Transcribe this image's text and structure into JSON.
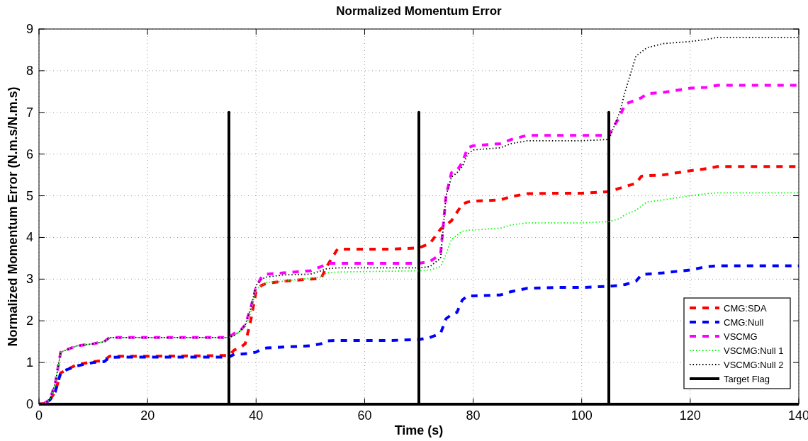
{
  "chart_data": {
    "type": "line",
    "title": "Normalized Momentum Error",
    "xlabel": "Time (s)",
    "ylabel": "Normalized Momentum Error (N.m.s/N.m.s)",
    "x": [
      0,
      1,
      2,
      3,
      4,
      5,
      7,
      10,
      12,
      13,
      15,
      20,
      30,
      35,
      36,
      37,
      38,
      39,
      40,
      41,
      42,
      45,
      50,
      52,
      53,
      55,
      60,
      65,
      70,
      72,
      74,
      75,
      76,
      77,
      78,
      79,
      80,
      85,
      87,
      90,
      95,
      100,
      105,
      107,
      108,
      110,
      111,
      112,
      115,
      120,
      123,
      125,
      130,
      140
    ],
    "series": [
      {
        "name": "CMG:SDA",
        "color": "#ff0000",
        "line_style": "dashed",
        "values": [
          0,
          0.02,
          0.1,
          0.3,
          0.75,
          0.82,
          0.95,
          1.02,
          1.05,
          1.15,
          1.15,
          1.15,
          1.16,
          1.17,
          1.3,
          1.35,
          1.45,
          2.0,
          2.7,
          2.85,
          2.9,
          2.95,
          3.0,
          3.02,
          3.3,
          3.72,
          3.72,
          3.72,
          3.75,
          3.85,
          4.2,
          4.3,
          4.4,
          4.6,
          4.8,
          4.85,
          4.87,
          4.9,
          4.98,
          5.05,
          5.06,
          5.06,
          5.1,
          5.18,
          5.22,
          5.3,
          5.47,
          5.48,
          5.5,
          5.6,
          5.65,
          5.7,
          5.7,
          5.7
        ]
      },
      {
        "name": "CMG:Null",
        "color": "#0000ff",
        "line_style": "dashed",
        "values": [
          0,
          0.02,
          0.1,
          0.3,
          0.75,
          0.82,
          0.92,
          1.0,
          1.02,
          1.12,
          1.13,
          1.13,
          1.13,
          1.13,
          1.2,
          1.2,
          1.21,
          1.22,
          1.25,
          1.32,
          1.35,
          1.37,
          1.4,
          1.45,
          1.52,
          1.53,
          1.53,
          1.53,
          1.55,
          1.6,
          1.7,
          2.05,
          2.15,
          2.2,
          2.5,
          2.6,
          2.6,
          2.62,
          2.7,
          2.78,
          2.8,
          2.8,
          2.83,
          2.85,
          2.87,
          2.95,
          3.1,
          3.12,
          3.15,
          3.22,
          3.3,
          3.32,
          3.32,
          3.32
        ]
      },
      {
        "name": "VSCMG",
        "color": "#ff00ff",
        "line_style": "dashed",
        "values": [
          0,
          0.02,
          0.1,
          0.5,
          1.25,
          1.3,
          1.4,
          1.45,
          1.5,
          1.6,
          1.6,
          1.6,
          1.6,
          1.6,
          1.7,
          1.75,
          1.9,
          2.3,
          2.8,
          3.05,
          3.12,
          3.15,
          3.2,
          3.3,
          3.38,
          3.38,
          3.38,
          3.38,
          3.38,
          3.42,
          3.6,
          5.0,
          5.55,
          5.6,
          5.8,
          6.15,
          6.2,
          6.25,
          6.35,
          6.45,
          6.45,
          6.45,
          6.45,
          6.9,
          7.2,
          7.3,
          7.35,
          7.45,
          7.48,
          7.58,
          7.6,
          7.65,
          7.65,
          7.65
        ]
      },
      {
        "name": "VSCMG:Null 1",
        "color": "#00ff00",
        "line_style": "dotted",
        "values": [
          0,
          0.02,
          0.1,
          0.5,
          1.25,
          1.3,
          1.4,
          1.45,
          1.5,
          1.6,
          1.6,
          1.6,
          1.6,
          1.6,
          1.65,
          1.75,
          1.85,
          2.2,
          2.75,
          2.85,
          2.92,
          2.95,
          3.02,
          3.05,
          3.15,
          3.17,
          3.18,
          3.19,
          3.2,
          3.22,
          3.3,
          3.6,
          3.95,
          4.05,
          4.15,
          4.17,
          4.18,
          4.22,
          4.3,
          4.35,
          4.35,
          4.35,
          4.38,
          4.45,
          4.55,
          4.65,
          4.75,
          4.85,
          4.9,
          5.0,
          5.05,
          5.07,
          5.07,
          5.07
        ]
      },
      {
        "name": "VSCMG:Null 2",
        "color": "#000000",
        "line_style": "dotted",
        "values": [
          0,
          0.02,
          0.1,
          0.5,
          1.25,
          1.3,
          1.4,
          1.45,
          1.5,
          1.6,
          1.6,
          1.6,
          1.6,
          1.6,
          1.65,
          1.75,
          1.9,
          2.3,
          2.85,
          3.0,
          3.05,
          3.1,
          3.12,
          3.2,
          3.25,
          3.27,
          3.27,
          3.27,
          3.27,
          3.3,
          3.5,
          5.0,
          5.45,
          5.55,
          5.7,
          6.0,
          6.1,
          6.15,
          6.25,
          6.32,
          6.32,
          6.32,
          6.35,
          7.0,
          7.5,
          8.35,
          8.45,
          8.55,
          8.65,
          8.7,
          8.75,
          8.8,
          8.8,
          8.8
        ]
      },
      {
        "name": "Target Flag",
        "color": "#000000",
        "line_style": "solid",
        "x": [
          0,
          35,
          35,
          35,
          70,
          70,
          70,
          105,
          105,
          105,
          140
        ],
        "values": [
          0,
          0,
          7,
          0,
          0,
          7,
          0,
          0,
          7,
          0,
          0
        ]
      }
    ],
    "xlim": [
      0,
      140
    ],
    "xticks": [
      0,
      20,
      40,
      60,
      80,
      100,
      120,
      140
    ],
    "ylim": [
      0,
      9
    ],
    "yticks": [
      0,
      1,
      2,
      3,
      4,
      5,
      6,
      7,
      8,
      9
    ],
    "grid": true,
    "legend": "bottom right"
  }
}
